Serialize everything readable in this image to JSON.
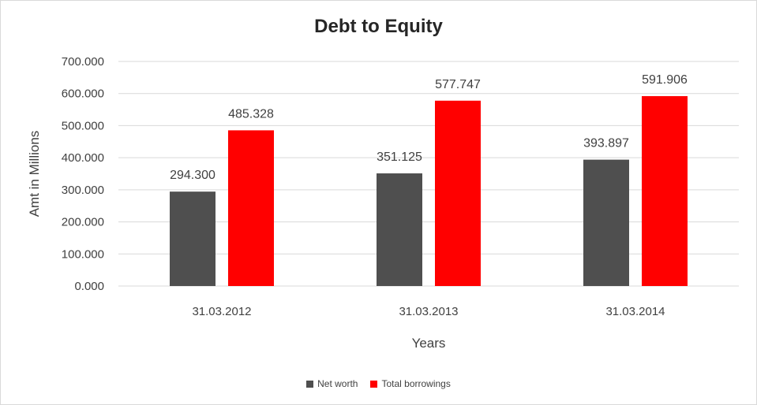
{
  "chart_data": {
    "type": "bar",
    "title": "Debt to Equity",
    "xlabel": "Years",
    "ylabel": "Amt in Millions",
    "categories": [
      "31.03.2012",
      "31.03.2013",
      "31.03.2014"
    ],
    "series": [
      {
        "name": "Net worth",
        "color": "#4f4f4f",
        "values": [
          294.3,
          351.125,
          393.897
        ],
        "labels": [
          "294.300",
          "351.125",
          "393.897"
        ]
      },
      {
        "name": "Total borrowings",
        "color": "#ff0000",
        "values": [
          485.328,
          577.747,
          591.906
        ],
        "labels": [
          "485.328",
          "577.747",
          "591.906"
        ]
      }
    ],
    "ylim": [
      0,
      700
    ],
    "yticks": [
      "0.000",
      "100.000",
      "200.000",
      "300.000",
      "400.000",
      "500.000",
      "600.000",
      "700.000"
    ],
    "grid": true,
    "legend_position": "bottom"
  }
}
